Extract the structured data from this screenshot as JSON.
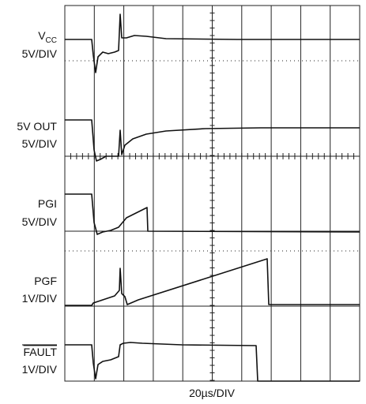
{
  "channels": [
    {
      "name": "V",
      "name_sub": "CC",
      "scale": "5V/DIV"
    },
    {
      "name": "5V OUT",
      "scale": "5V/DIV"
    },
    {
      "name": "PGI",
      "scale": "5V/DIV"
    },
    {
      "name": "PGF",
      "scale": "1V/DIV"
    },
    {
      "name": "FAULT",
      "scale": "1V/DIV"
    }
  ],
  "x_scale": "20µs/DIV"
}
